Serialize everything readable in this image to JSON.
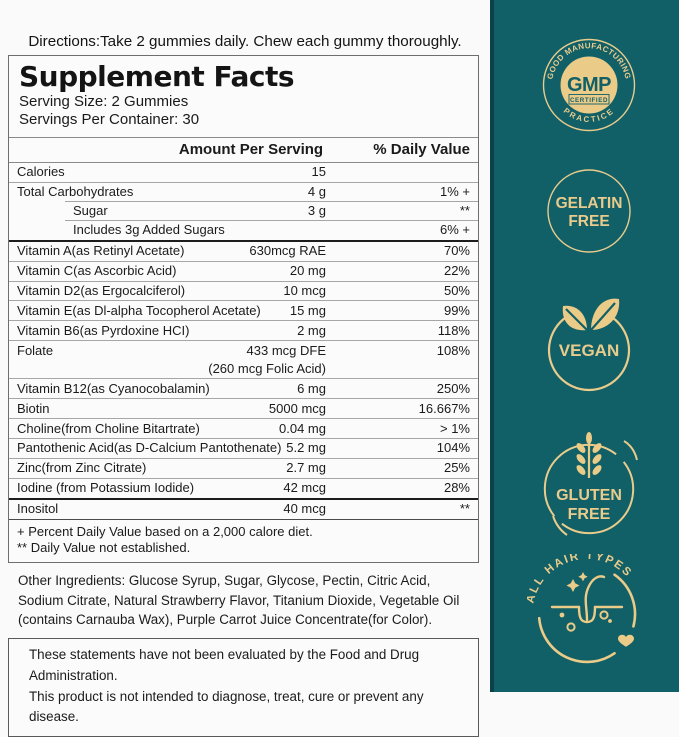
{
  "colors": {
    "teal": "#115F67",
    "teal_edge": "#0B4249",
    "gold_fill": "#EACB87",
    "gold_text": "#E9CC8C"
  },
  "directions": "Directions:Take 2 gummies daily. Chew each gummy thoroughly.",
  "panel": {
    "title": "Supplement Facts",
    "serving_size": "Serving Size: 2 Gummies",
    "servings_per_container": "Servings Per Container: 30"
  },
  "table": {
    "col_amount": "Amount Per Serving",
    "col_dv": "% Daily Value",
    "rows": [
      {
        "name": "Calories",
        "amount": "15",
        "dv": ""
      },
      {
        "name": "Total Carbohydrates",
        "amount": "4 g",
        "dv": "1%  +"
      },
      {
        "name": "Sugar",
        "amount": "3 g",
        "dv": "**",
        "indent": true
      },
      {
        "name": "Includes 3g Added Sugars",
        "amount": "",
        "dv": "6% +",
        "indent": true
      },
      {
        "name": "Vitamin A(as Retinyl Acetate)",
        "amount": "630mcg RAE",
        "dv": "70%"
      },
      {
        "name": "Vitamin C(as Ascorbic Acid)",
        "amount": "20 mg",
        "dv": "22%"
      },
      {
        "name": "Vitamin D2(as Ergocalciferol)",
        "amount": "10 mcg",
        "dv": "50%"
      },
      {
        "name": "Vitamin E(as Dl-alpha Tocopherol Acetate)",
        "amount": "15 mg",
        "dv": "99%"
      },
      {
        "name": "Vitamin B6(as Pyrdoxine HCI)",
        "amount": "2 mg",
        "dv": "118%"
      },
      {
        "name": "Folate",
        "amount": "433 mcg DFE",
        "dv": "108%",
        "sub": "(260 mcg Folic Acid)"
      },
      {
        "name": "Vitamin B12(as Cyanocobalamin)",
        "amount": "6 mg",
        "dv": "250%"
      },
      {
        "name": "Biotin",
        "amount": "5000 mcg",
        "dv": "16.667%"
      },
      {
        "name": "Choline(from Choline Bitartrate)",
        "amount": "0.04 mg",
        "dv": "> 1%"
      },
      {
        "name": "Pantothenic Acid(as D-Calcium Pantothenate)",
        "amount": "5.2 mg",
        "dv": "104%"
      },
      {
        "name": "Zinc(from Zinc Citrate)",
        "amount": "2.7 mg",
        "dv": "25%"
      },
      {
        "name": "Iodine (from Potassium Iodide)",
        "amount": "42 mcg",
        "dv": "28%"
      },
      {
        "name": "Inositol",
        "amount": "40 mcg",
        "dv": "**"
      }
    ],
    "footnotes": [
      "+ Percent Daily Value based on a 2,000 calore diet.",
      "** Daily Value not established."
    ]
  },
  "other_ingredients": "Other Ingredients: Glucose Syrup, Sugar, Glycose, Pectin, Citric Acid, Sodium Citrate, Natural Strawberry Flavor, Titanium Dioxide, Vegetable Oil (contains Carnauba Wax), Purple Carrot Juice Concentrate(for Color).",
  "disclaimer": [
    "These statements have not been evaluated by the Food and Drug Administration.",
    "This product is not intended to diagnose, treat, cure or prevent any disease."
  ],
  "badges": {
    "gmp": {
      "arc_top": "GOOD MANUFACTURING",
      "arc_bottom": "PRACTICE",
      "center": "GMP",
      "sub": "CERTIFIED"
    },
    "gelatin": {
      "line1": "GELATIN",
      "line2": "FREE"
    },
    "vegan": {
      "label": "VEGAN"
    },
    "gluten": {
      "line1": "GLUTEN",
      "line2": "FREE"
    },
    "hair": {
      "arc": "ALL HAIR TYPES"
    }
  }
}
